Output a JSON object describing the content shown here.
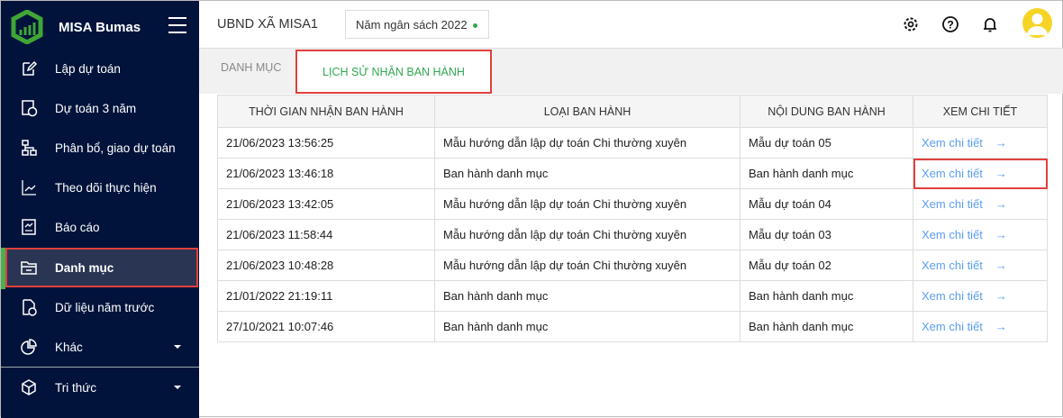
{
  "sidebar": {
    "brand": "MISA Bumas",
    "items": [
      {
        "label": "Lập dự toán",
        "icon": "edit-icon"
      },
      {
        "label": "Dự toán 3 năm",
        "icon": "calendar-3-icon"
      },
      {
        "label": "Phân bổ, giao dự toán",
        "icon": "hierarchy-icon"
      },
      {
        "label": "Theo dõi thực hiện",
        "icon": "line-chart-icon"
      },
      {
        "label": "Báo cáo",
        "icon": "report-icon"
      },
      {
        "label": "Danh mục",
        "icon": "folder-icon",
        "active": true
      },
      {
        "label": "Dữ liệu năm trước",
        "icon": "file-clock-icon"
      },
      {
        "label": "Khác",
        "icon": "pie-chart-icon",
        "dropdown": true
      },
      {
        "label": "Tri thức",
        "icon": "cube-icon",
        "dropdown": true
      }
    ]
  },
  "header": {
    "org": "UBND XÃ MISA1",
    "budget_year": "Năm ngân sách 2022"
  },
  "tabs": {
    "catalog": "DANH MỤC",
    "history": "LỊCH SỬ NHẬN BAN HÀNH"
  },
  "table": {
    "headers": [
      "THỜI GIAN NHẬN BAN HÀNH",
      "LOẠI BAN HÀNH",
      "NỘI DUNG BAN HÀNH",
      "XEM CHI TIẾT"
    ],
    "link_label": "Xem chi tiết",
    "arrow": "→",
    "rows": [
      [
        "21/06/2023 13:56:25",
        "Mẫu hướng dẫn lập dự toán Chi thường xuyên",
        "Mẫu dự toán 05"
      ],
      [
        "21/06/2023 13:46:18",
        "Ban hành danh mục",
        "Ban hành danh mục"
      ],
      [
        "21/06/2023 13:42:05",
        "Mẫu hướng dẫn lập dự toán Chi thường xuyên",
        "Mẫu dự toán 04"
      ],
      [
        "21/06/2023 11:58:44",
        "Mẫu hướng dẫn lập dự toán Chi thường xuyên",
        "Mẫu dự toán 03"
      ],
      [
        "21/06/2023 10:48:28",
        "Mẫu hướng dẫn lập dự toán Chi thường xuyên",
        "Mẫu dự toán 02"
      ],
      [
        "21/01/2022 21:19:11",
        "Ban hành danh mục",
        "Ban hành danh mục"
      ],
      [
        "27/10/2021 10:07:46",
        "Ban hành danh mục",
        "Ban hành danh mục"
      ]
    ]
  },
  "colors": {
    "sidebar": "#01133b",
    "accent": "#2fa84f",
    "link": "#5b9ef0",
    "highlight": "#e0403c"
  }
}
